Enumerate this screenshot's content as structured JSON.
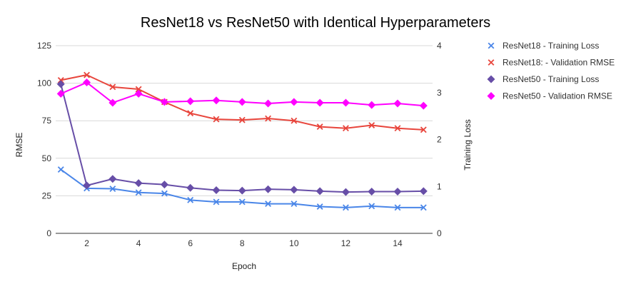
{
  "chart_data": {
    "type": "line",
    "title": "ResNet18 vs ResNet50 with Identical Hyperparameters",
    "xlabel": "Epoch",
    "ylabel": "RMSE",
    "ylabel_right": "Training Loss",
    "x": [
      1,
      2,
      3,
      4,
      5,
      6,
      7,
      8,
      9,
      10,
      11,
      12,
      13,
      14,
      15
    ],
    "xlim": [
      0.8,
      15.35
    ],
    "xticks": [
      2,
      4,
      6,
      8,
      10,
      12,
      14
    ],
    "ylim": [
      0,
      125
    ],
    "yticks": [
      0,
      25,
      50,
      75,
      100,
      125
    ],
    "ylim_right": [
      0,
      4
    ],
    "yticks_right": [
      0,
      1,
      2,
      3,
      4
    ],
    "grid": true,
    "legend_position": "right",
    "series": [
      {
        "name": "ResNet18 - Training Loss",
        "axis": "right",
        "marker": "x",
        "color": "#4a86e8",
        "values": [
          1.36,
          0.96,
          0.95,
          0.87,
          0.85,
          0.71,
          0.67,
          0.67,
          0.63,
          0.63,
          0.57,
          0.55,
          0.58,
          0.55,
          0.55
        ]
      },
      {
        "name": "ResNet18: - Validation RMSE",
        "axis": "left",
        "marker": "x",
        "color": "#e8453c",
        "values": [
          102,
          105.5,
          97.5,
          96,
          87.5,
          80,
          76,
          75.5,
          76.5,
          75,
          71,
          70,
          72,
          70,
          69
        ]
      },
      {
        "name": "ResNet50 - Training Loss",
        "axis": "right",
        "marker": "diamond",
        "color": "#674ea7",
        "values": [
          3.18,
          1.02,
          1.16,
          1.07,
          1.04,
          0.97,
          0.92,
          0.91,
          0.94,
          0.93,
          0.9,
          0.88,
          0.89,
          0.89,
          0.9
        ]
      },
      {
        "name": "ResNet50 - Validation RMSE",
        "axis": "left",
        "marker": "diamond",
        "color": "#ff00ff",
        "values": [
          93,
          100.5,
          87,
          93,
          87.5,
          88,
          88.5,
          87.5,
          86.5,
          87.5,
          87,
          87,
          85.5,
          86.5,
          85
        ]
      }
    ]
  }
}
